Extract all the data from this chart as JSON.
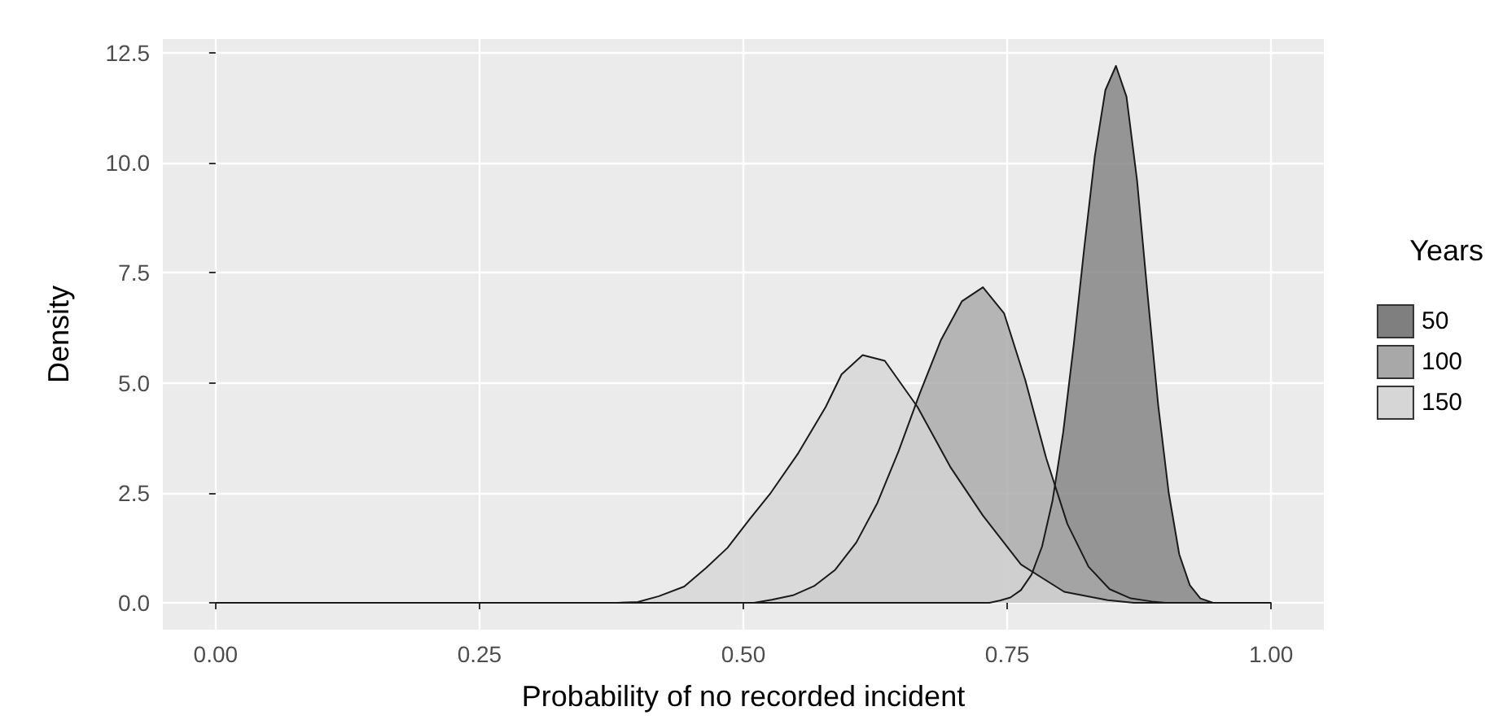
{
  "chart_data": {
    "type": "area",
    "xlabel": "Probability of no recorded incident",
    "ylabel": "Density",
    "legend_title": "Years",
    "legend": "right",
    "grid": true,
    "line_style": "solid",
    "marker": "none",
    "xlim": [
      -0.05,
      1.05
    ],
    "ylim": [
      -0.61,
      12.81
    ],
    "xticks": [
      {
        "value": 0,
        "label": "0.00"
      },
      {
        "value": 0.25,
        "label": "0.25"
      },
      {
        "value": 0.5,
        "label": "0.50"
      },
      {
        "value": 0.75,
        "label": "0.75"
      },
      {
        "value": 1,
        "label": "1.00"
      }
    ],
    "yticks": [
      {
        "value": 0,
        "label": "0.0"
      },
      {
        "value": 2.5,
        "label": "2.5"
      },
      {
        "value": 5,
        "label": "5.0"
      },
      {
        "value": 7.5,
        "label": "7.5"
      },
      {
        "value": 10,
        "label": "10.0"
      },
      {
        "value": 12.5,
        "label": "12.5"
      }
    ],
    "series": [
      {
        "name": "50",
        "color": "#7f7f7f",
        "x": [
          0,
          0.733,
          0.743,
          0.753,
          0.763,
          0.773,
          0.783,
          0.793,
          0.803,
          0.813,
          0.823,
          0.833,
          0.843,
          0.853,
          0.863,
          0.873,
          0.883,
          0.893,
          0.903,
          0.913,
          0.923,
          0.933,
          0.945,
          1
        ],
        "values": [
          0,
          0,
          0.05,
          0.12,
          0.29,
          0.64,
          1.28,
          2.33,
          3.87,
          5.86,
          8.07,
          10.15,
          11.65,
          12.2,
          11.5,
          9.6,
          7.0,
          4.5,
          2.5,
          1.1,
          0.4,
          0.1,
          0,
          0
        ]
      },
      {
        "name": "100",
        "color": "#a8a8a8",
        "x": [
          0,
          0.51,
          0.527,
          0.547,
          0.567,
          0.587,
          0.607,
          0.627,
          0.647,
          0.667,
          0.687,
          0.707,
          0.727,
          0.747,
          0.767,
          0.787,
          0.807,
          0.827,
          0.847,
          0.867,
          0.887,
          0.9,
          1
        ],
        "values": [
          0,
          0,
          0.07,
          0.17,
          0.38,
          0.75,
          1.37,
          2.27,
          3.44,
          4.75,
          5.96,
          6.85,
          7.17,
          6.58,
          5.07,
          3.28,
          1.79,
          0.82,
          0.31,
          0.1,
          0.03,
          0,
          0
        ]
      },
      {
        "name": "150",
        "color": "#d6d6d6",
        "x": [
          0,
          0.38,
          0.4,
          0.42,
          0.444,
          0.465,
          0.485,
          0.506,
          0.526,
          0.552,
          0.578,
          0.593,
          0.613,
          0.634,
          0.665,
          0.696,
          0.727,
          0.763,
          0.804,
          0.845,
          0.87,
          1
        ],
        "values": [
          0,
          0,
          0.02,
          0.15,
          0.37,
          0.8,
          1.25,
          1.9,
          2.5,
          3.4,
          4.45,
          5.19,
          5.63,
          5.5,
          4.45,
          3.09,
          1.98,
          0.87,
          0.25,
          0.06,
          0,
          0
        ]
      }
    ]
  }
}
